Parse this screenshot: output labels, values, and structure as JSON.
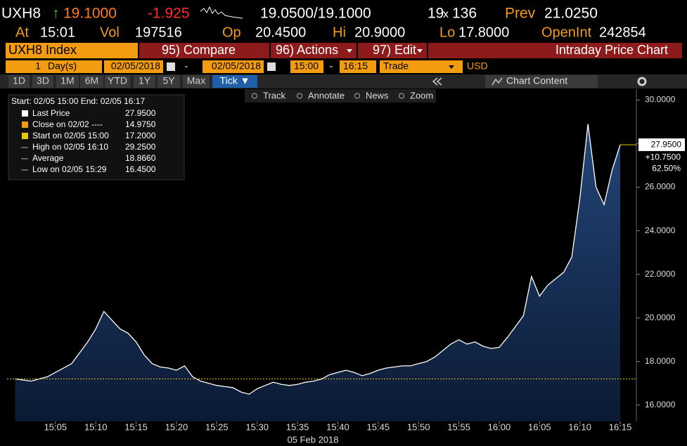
{
  "header": {
    "ticker": "UXH8",
    "arrow": "↑",
    "last": "19.1000",
    "change": "-1.925",
    "bid_ask": "19.0500/19.1000",
    "size_bid": "19",
    "size_sep": "x",
    "size_ask": "136",
    "prev_label": "Prev",
    "prev": "21.0250",
    "stats": [
      {
        "label": "At",
        "value": "15:01"
      },
      {
        "label": "Vol",
        "value": "197516"
      },
      {
        "label": "Op",
        "value": "20.4500"
      },
      {
        "label": "Hi",
        "value": "20.9000"
      },
      {
        "label": "Lo",
        "value": "17.8000"
      },
      {
        "label": "OpenInt",
        "value": "242854"
      }
    ]
  },
  "menu": {
    "security": "UXH8 Index",
    "items": [
      "95) Compare",
      "96) Actions",
      "97) Edit"
    ],
    "title": "Intraday Price Chart"
  },
  "controls": {
    "days": "1",
    "unit": "Day(s)",
    "start_date": "02/05/2018",
    "separator": "-",
    "end_date": "02/05/2018",
    "start_time": "15:00",
    "end_time": "16:15",
    "field": "Trade",
    "currency": "USD"
  },
  "periods": [
    "1D",
    "3D",
    "1M",
    "6M",
    "YTD",
    "1Y",
    "5Y",
    "Max",
    "Tick ▼"
  ],
  "chart_content": "Chart Content",
  "tools": [
    "Track",
    "Annotate",
    "News",
    "Zoom"
  ],
  "legend": {
    "range": "Start: 02/05 15:00 End: 02/05 16:17",
    "rows": [
      [
        "Last Price",
        "27.9500"
      ],
      [
        "Close on 02/02 ----",
        "14.9750"
      ],
      [
        "Start on 02/05 15:00",
        "17.2000"
      ],
      [
        "High on 02/05 16:10",
        "29.2500"
      ],
      [
        "Average",
        "18.8660"
      ],
      [
        "Low on 02/05 15:29",
        "16.4500"
      ]
    ]
  },
  "chart_data": {
    "type": "area",
    "x_label": "05 Feb 2018",
    "x": [
      "15:00",
      "15:01",
      "15:02",
      "15:03",
      "15:04",
      "15:05",
      "15:06",
      "15:07",
      "15:08",
      "15:09",
      "15:10",
      "15:11",
      "15:12",
      "15:13",
      "15:14",
      "15:15",
      "15:16",
      "15:17",
      "15:18",
      "15:19",
      "15:20",
      "15:21",
      "15:22",
      "15:23",
      "15:24",
      "15:25",
      "15:26",
      "15:27",
      "15:28",
      "15:29",
      "15:30",
      "15:31",
      "15:32",
      "15:33",
      "15:34",
      "15:35",
      "15:36",
      "15:37",
      "15:38",
      "15:39",
      "15:40",
      "15:41",
      "15:42",
      "15:43",
      "15:44",
      "15:45",
      "15:46",
      "15:47",
      "15:48",
      "15:49",
      "15:50",
      "15:51",
      "15:52",
      "15:53",
      "15:54",
      "15:55",
      "15:56",
      "15:57",
      "15:58",
      "15:59",
      "16:00",
      "16:01",
      "16:02",
      "16:03",
      "16:04",
      "16:05",
      "16:06",
      "16:07",
      "16:08",
      "16:09",
      "16:10",
      "16:11",
      "16:12",
      "16:13",
      "16:14",
      "16:15"
    ],
    "values": [
      17.2,
      17.15,
      17.1,
      17.2,
      17.3,
      17.5,
      17.7,
      17.9,
      18.4,
      18.9,
      19.5,
      20.3,
      19.9,
      19.5,
      19.3,
      18.9,
      18.3,
      17.9,
      17.75,
      17.7,
      17.6,
      17.8,
      17.3,
      17.1,
      17.0,
      16.9,
      16.85,
      16.8,
      16.6,
      16.5,
      16.75,
      16.9,
      17.05,
      16.95,
      16.9,
      16.95,
      17.05,
      17.1,
      17.2,
      17.4,
      17.5,
      17.6,
      17.5,
      17.35,
      17.45,
      17.6,
      17.7,
      17.75,
      17.8,
      17.8,
      17.9,
      18.0,
      18.2,
      18.5,
      18.8,
      19.0,
      18.8,
      18.9,
      18.7,
      18.6,
      18.65,
      19.1,
      19.6,
      20.1,
      21.9,
      21.0,
      21.5,
      21.8,
      22.1,
      22.8,
      25.5,
      28.9,
      26.0,
      25.2,
      26.8,
      27.95
    ],
    "line_color": "#ffffff",
    "fill_color": "#1c3a63",
    "xlim": [
      "14:59",
      "16:17"
    ],
    "xticks": [
      "15:05",
      "15:10",
      "15:15",
      "15:20",
      "15:25",
      "15:30",
      "15:35",
      "15:40",
      "15:45",
      "15:50",
      "15:55",
      "16:00",
      "16:05",
      "16:10",
      "16:15"
    ],
    "ylim": [
      15.25,
      30.5
    ],
    "yticks": [
      {
        "value": 16,
        "label": "16.0000"
      },
      {
        "value": 18,
        "label": "18.0000"
      },
      {
        "value": 20,
        "label": "20.0000"
      },
      {
        "value": 22,
        "label": "22.0000"
      },
      {
        "value": 24,
        "label": "24.0000"
      },
      {
        "value": 26,
        "label": "26.0000"
      },
      {
        "value": 28,
        "label": "28.0000"
      },
      {
        "value": 30,
        "label": "30.0000"
      }
    ],
    "start_line": {
      "value": 17.2,
      "color": "#e8c800"
    },
    "last_price": {
      "value": 27.95,
      "label": "27.9500",
      "color": "#e8c800"
    },
    "change_labels": [
      "+10.7500",
      "62.50%"
    ]
  }
}
